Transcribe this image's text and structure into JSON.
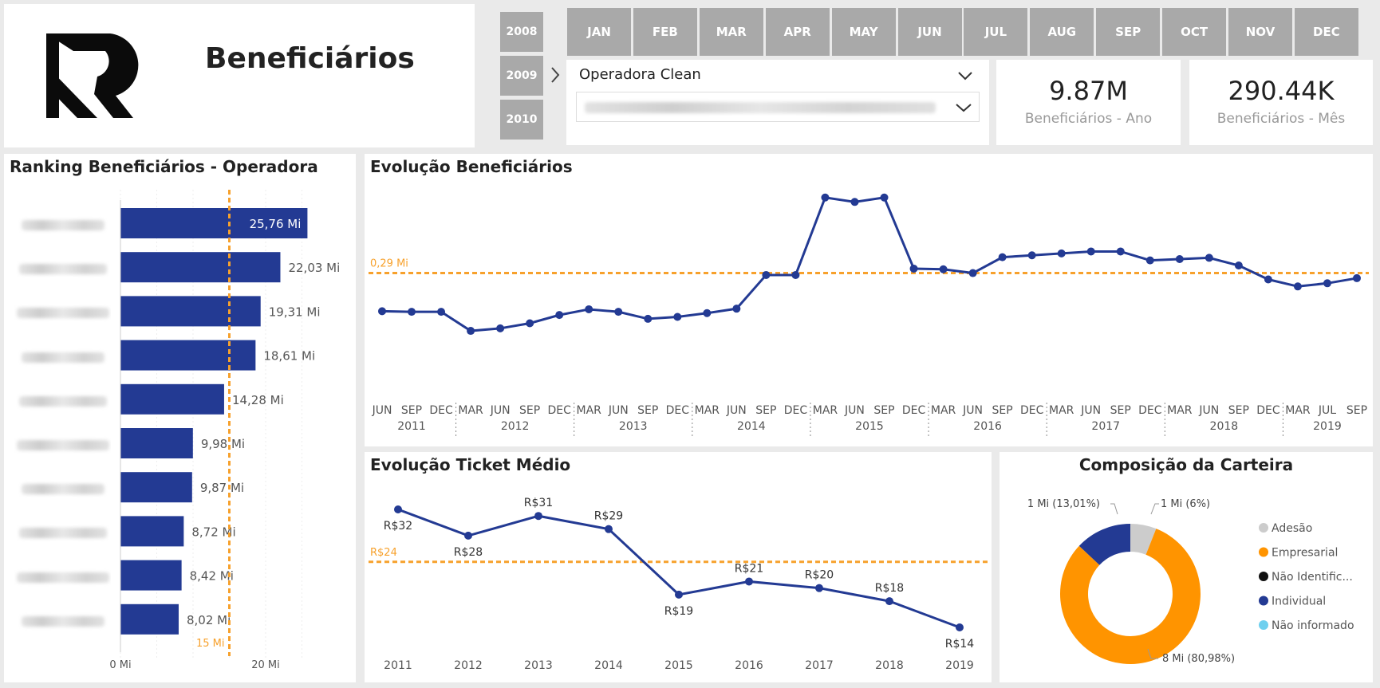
{
  "header": {
    "title": "Beneficiários"
  },
  "years": [
    "2008",
    "2009",
    "2010"
  ],
  "months": [
    "JAN",
    "FEB",
    "MAR",
    "APR",
    "MAY",
    "JUN",
    "JUL",
    "AUG",
    "SEP",
    "OCT",
    "NOV",
    "DEC"
  ],
  "filters": {
    "operadora_label": "Operadora Clean",
    "second_value": ""
  },
  "kpis": [
    {
      "value": "9.87M",
      "label": "Beneficiários - Ano"
    },
    {
      "value": "290.44K",
      "label": "Beneficiários - Mês"
    }
  ],
  "colors": {
    "bar": "#233a93",
    "average": "#f7a12c",
    "slicer": "#a9a9a9",
    "empresarial": "#ff9400",
    "individual": "#233a93",
    "adesao": "#cccccc",
    "nao_identificado": "#111111",
    "nao_informado": "#6fd0ef"
  },
  "chart_data": [
    {
      "type": "bar",
      "title": "Ranking Beneficiários - Operadora",
      "orientation": "horizontal",
      "categories": [
        "",
        "",
        "",
        "",
        "",
        "",
        "",
        "",
        "",
        ""
      ],
      "values": [
        25.76,
        22.03,
        19.31,
        18.61,
        14.28,
        9.98,
        9.87,
        8.72,
        8.42,
        8.02
      ],
      "data_labels": [
        "25,76 Mi",
        "22,03 Mi",
        "19,31 Mi",
        "18,61 Mi",
        "14,28 Mi",
        "9,98 Mi",
        "9,87 Mi",
        "8,72 Mi",
        "8,42 Mi",
        "8,02 Mi"
      ],
      "xticks": [
        0,
        20
      ],
      "xtick_labels": [
        "0 Mi",
        "20 Mi"
      ],
      "xlim": [
        0,
        30
      ],
      "average": 15,
      "average_label": "15 Mi"
    },
    {
      "type": "line",
      "title": "Evolução Beneficiários",
      "x_labels": [
        "JUN",
        "SEP",
        "DEC",
        "MAR",
        "JUN",
        "SEP",
        "DEC",
        "MAR",
        "JUN",
        "SEP",
        "DEC",
        "MAR",
        "JUN",
        "SEP",
        "DEC",
        "MAR",
        "JUN",
        "SEP",
        "DEC",
        "MAR",
        "JUN",
        "SEP",
        "DEC",
        "MAR",
        "JUN",
        "SEP",
        "DEC",
        "MAR",
        "JUN",
        "SEP",
        "DEC",
        "MAR",
        "JUL",
        "SEP"
      ],
      "year_labels": [
        "2011",
        "2012",
        "2013",
        "2014",
        "2015",
        "2016",
        "2017",
        "2018",
        "2019"
      ],
      "year_spans": [
        3,
        4,
        4,
        4,
        4,
        4,
        4,
        4,
        3
      ],
      "values": [
        0.23,
        0.229,
        0.229,
        0.199,
        0.203,
        0.211,
        0.224,
        0.233,
        0.229,
        0.218,
        0.221,
        0.227,
        0.234,
        0.287,
        0.287,
        0.409,
        0.402,
        0.409,
        0.297,
        0.296,
        0.29,
        0.315,
        0.318,
        0.321,
        0.324,
        0.324,
        0.31,
        0.312,
        0.314,
        0.302,
        0.28,
        0.269,
        0.274,
        0.282
      ],
      "ylim": [
        0.12,
        0.43
      ],
      "average": 0.29,
      "average_label": "0,29 Mi"
    },
    {
      "type": "line",
      "title": "Evolução Ticket Médio",
      "x": [
        "2011",
        "2012",
        "2013",
        "2014",
        "2015",
        "2016",
        "2017",
        "2018",
        "2019"
      ],
      "values": [
        32,
        28,
        31,
        29,
        19,
        21,
        20,
        18,
        14
      ],
      "data_labels": [
        "R$32",
        "R$28",
        "R$31",
        "R$29",
        "R$19",
        "R$21",
        "R$20",
        "R$18",
        "R$14"
      ],
      "label_pos": [
        "below",
        "below",
        "above",
        "above",
        "below",
        "above",
        "above",
        "above",
        "below"
      ],
      "ylim": [
        10,
        36
      ],
      "average": 24,
      "average_label": "R$24"
    },
    {
      "type": "pie",
      "title": "Composição da Carteira",
      "donut": true,
      "slices": [
        {
          "name": "Adesão",
          "value": 6.0,
          "label": "1 Mi (6%)",
          "color": "#cccccc"
        },
        {
          "name": "Empresarial",
          "value": 80.98,
          "label": "8 Mi (80,98%)",
          "color": "#ff9400"
        },
        {
          "name": "Não Identific...",
          "value": 0.0,
          "label": "",
          "color": "#111111"
        },
        {
          "name": "Individual",
          "value": 13.01,
          "label": "1 Mi (13,01%)",
          "color": "#233a93"
        },
        {
          "name": "Não informado",
          "value": 0.0,
          "label": "",
          "color": "#6fd0ef"
        }
      ],
      "legend_position": "right"
    }
  ]
}
